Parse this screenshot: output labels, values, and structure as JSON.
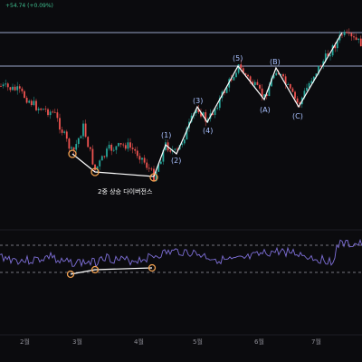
{
  "header": {
    "price_change": "+54.74 (+0.09%)"
  },
  "annotation": {
    "divergence_label": "2중 상승 다이버전스"
  },
  "x_axis": {
    "month_labels": [
      "2월",
      "3월",
      "4월",
      "5월",
      "6월",
      "7월"
    ]
  },
  "elliott_waves": {
    "impulse_labels": [
      "(1)",
      "(2)",
      "(3)",
      "(4)",
      "(5)"
    ],
    "corrective_labels": [
      "(A)",
      "(B)",
      "(C)"
    ]
  },
  "colors": {
    "background": "#0b0b0e",
    "up_candle": "#26a69a",
    "down_candle": "#ef5350",
    "trendline": "#ffffff",
    "divergence_marker": "#f0a050",
    "rsi_line": "#7e6fd8",
    "resistance_line": "#9aa4c8"
  },
  "chart_data": {
    "type": "candlestick",
    "title": "",
    "x_ticks": [
      "2월",
      "3월",
      "4월",
      "5월",
      "6월",
      "7월"
    ],
    "horizontal_levels": 2,
    "divergence_points": 3,
    "indicator_panel": "oscillator with dashed reference bands"
  }
}
